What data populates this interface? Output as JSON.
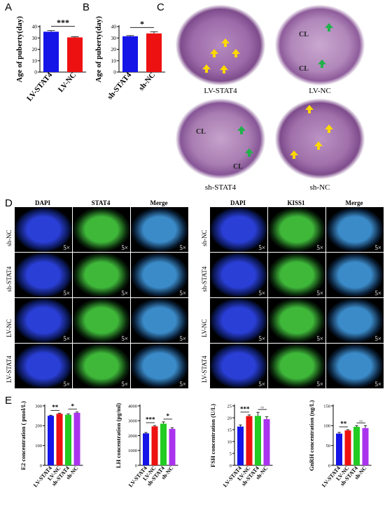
{
  "panels": {
    "A": "A",
    "B": "B",
    "C": "C",
    "D": "D",
    "E": "E"
  },
  "chart_data": [
    {
      "id": "A",
      "type": "bar",
      "categories": [
        "LV-STAT4",
        "LV-NC"
      ],
      "values": [
        35.5,
        30.5
      ],
      "errors": [
        1.0,
        0.6
      ],
      "colors": [
        "#1515e8",
        "#ee1111"
      ],
      "ylabel": "Age of puberty(day)",
      "ylim": [
        0,
        40
      ],
      "yticks": [
        0,
        10,
        20,
        30,
        40
      ],
      "significance": [
        {
          "pair": [
            0,
            1
          ],
          "label": "***"
        }
      ]
    },
    {
      "id": "B",
      "type": "bar",
      "categories": [
        "sh-STAT4",
        "sh-NC"
      ],
      "values": [
        31.5,
        34.0
      ],
      "errors": [
        0.6,
        1.5
      ],
      "colors": [
        "#1515e8",
        "#ee1111"
      ],
      "ylabel": "Age of puberty(day)",
      "ylim": [
        0,
        40
      ],
      "yticks": [
        0,
        10,
        20,
        30,
        40
      ],
      "significance": [
        {
          "pair": [
            0,
            1
          ],
          "label": "*"
        }
      ]
    },
    {
      "id": "E1",
      "type": "bar",
      "categories": [
        "LV-STAT4",
        "LV-NC",
        "sh-STAT4",
        "sh-NC"
      ],
      "values": [
        250,
        260,
        255,
        265
      ],
      "errors": [
        3,
        3,
        4,
        4
      ],
      "colors": [
        "#1515e8",
        "#ee1111",
        "#22cc22",
        "#aa33ee"
      ],
      "ylabel": "E2 concentration ( pmol/L)",
      "ylim": [
        0,
        300
      ],
      "yticks": [
        0,
        100,
        200,
        300
      ],
      "significance": [
        {
          "pair": [
            0,
            1
          ],
          "label": "**"
        },
        {
          "pair": [
            2,
            3
          ],
          "label": "*"
        }
      ]
    },
    {
      "id": "E2",
      "type": "bar",
      "categories": [
        "LV-STAT4",
        "LV-NC",
        "sh-STAT4",
        "sh-NC"
      ],
      "values": [
        2150,
        2620,
        2800,
        2450
      ],
      "errors": [
        60,
        60,
        120,
        80
      ],
      "colors": [
        "#1515e8",
        "#ee1111",
        "#22cc22",
        "#aa33ee"
      ],
      "ylabel": "LH concentration (pg/ml)",
      "ylim": [
        0,
        4000
      ],
      "yticks": [
        0,
        1000,
        2000,
        3000,
        4000
      ],
      "significance": [
        {
          "pair": [
            0,
            1
          ],
          "label": "***"
        },
        {
          "pair": [
            2,
            3
          ],
          "label": "*"
        }
      ]
    },
    {
      "id": "E3",
      "type": "bar",
      "categories": [
        "LV-STAT4",
        "LV-NC",
        "sh-STAT4",
        "sh-NC"
      ],
      "values": [
        16.3,
        20.7,
        20.8,
        19.4
      ],
      "errors": [
        0.7,
        0.5,
        1.5,
        1.0
      ],
      "colors": [
        "#1515e8",
        "#ee1111",
        "#22cc22",
        "#aa33ee"
      ],
      "ylabel": "FSH concentration (U/L)",
      "ylim": [
        0,
        25
      ],
      "yticks": [
        0,
        5,
        10,
        15,
        20,
        25
      ],
      "significance": [
        {
          "pair": [
            0,
            1
          ],
          "label": "***"
        },
        {
          "pair": [
            2,
            3
          ],
          "label": "ns"
        }
      ]
    },
    {
      "id": "E4",
      "type": "bar",
      "categories": [
        "LV-STAT4",
        "LV-NC",
        "sh-STAT4",
        "sh-NC"
      ],
      "values": [
        80,
        88,
        97,
        94
      ],
      "errors": [
        3,
        2,
        3,
        6
      ],
      "colors": [
        "#1515e8",
        "#ee1111",
        "#22cc22",
        "#aa33ee"
      ],
      "ylabel": "GnRH concentration (ng/L)",
      "ylim": [
        0,
        150
      ],
      "yticks": [
        0,
        50,
        100,
        150
      ],
      "significance": [
        {
          "pair": [
            0,
            1
          ],
          "label": "**"
        },
        {
          "pair": [
            2,
            3
          ],
          "label": "ns"
        }
      ]
    }
  ],
  "histology": {
    "captions": [
      "LV-STAT4",
      "LV-NC",
      "sh-STAT4",
      "sh-NC"
    ],
    "cl": "CL"
  },
  "immuno": {
    "left_headers": [
      "DAPI",
      "STAT4",
      "Merge"
    ],
    "right_headers": [
      "DAPI",
      "KISS1",
      "Merge"
    ],
    "rows": [
      "sh-NC",
      "sh-STAT4",
      "LV-NC",
      "LV-STAT4"
    ],
    "magnification": "5×"
  }
}
